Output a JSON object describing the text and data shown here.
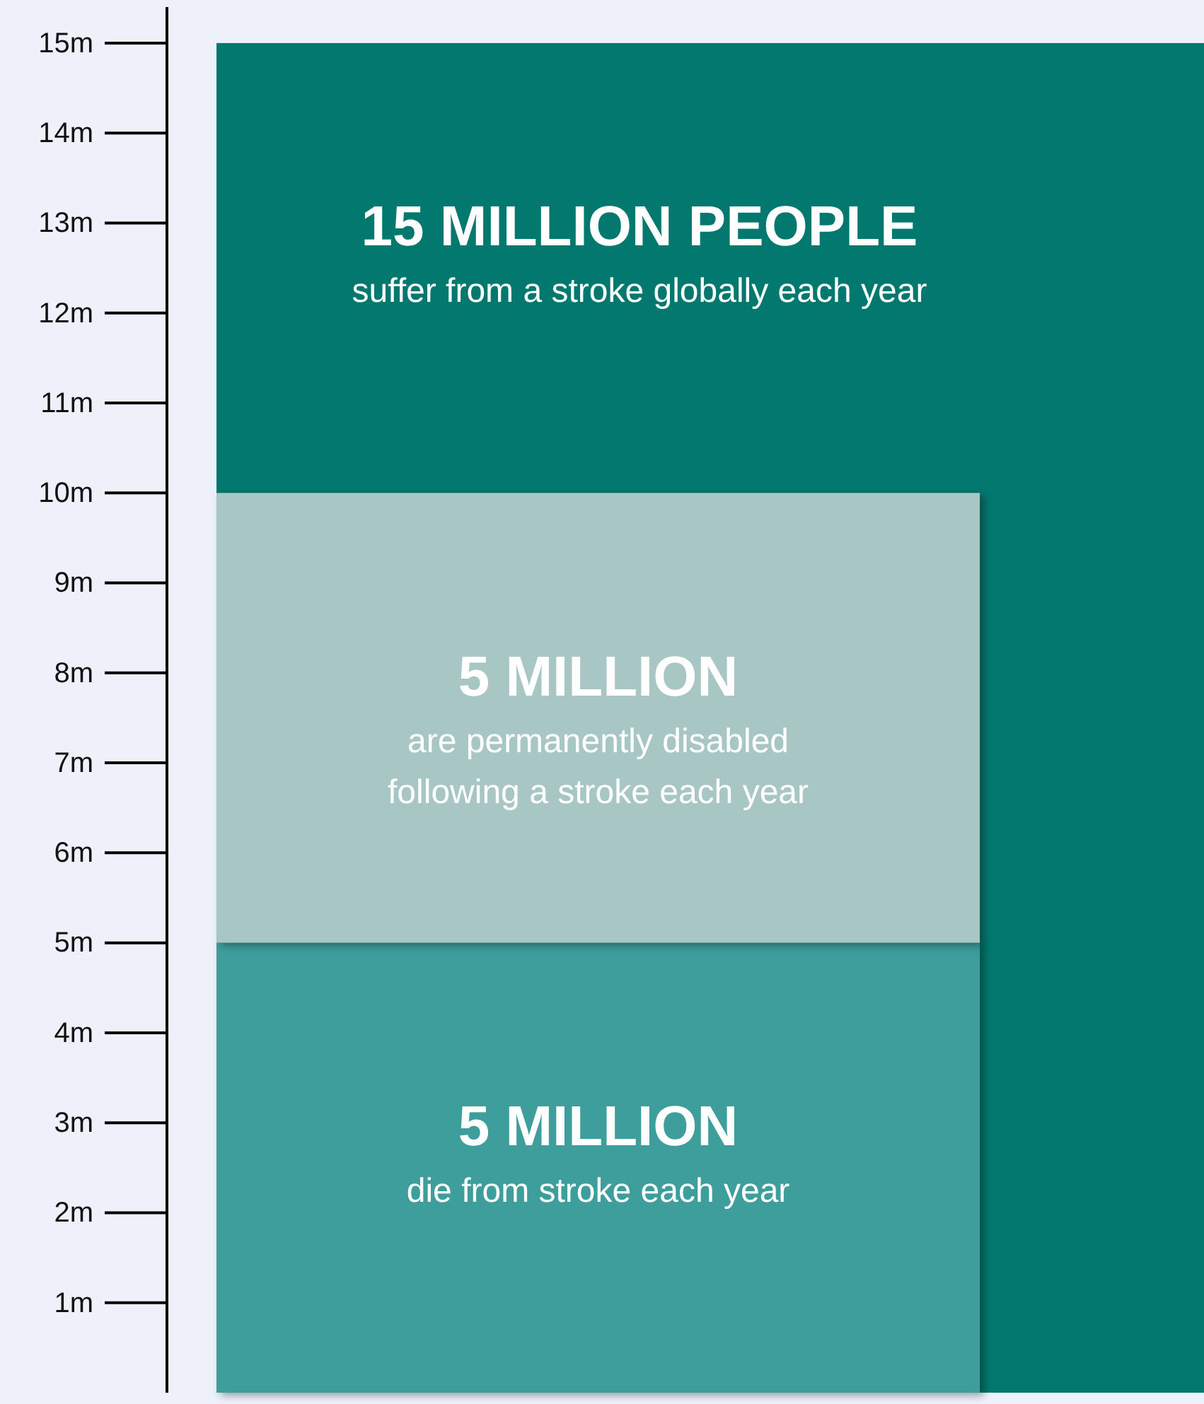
{
  "chart_data": {
    "type": "bar",
    "categories": [
      null
    ],
    "series": [
      {
        "name": "suffer from a stroke globally each year",
        "color": "#03786f",
        "values": [
          15
        ],
        "base": [
          0
        ],
        "value_labels": [
          "15 MILLION PEOPLE"
        ]
      },
      {
        "name": "die from stroke each year",
        "color": "#3d9e9c",
        "values": [
          5
        ],
        "base": [
          0
        ],
        "value_labels": [
          "5 MILLION"
        ]
      },
      {
        "name": "are permanently disabled following a stroke each year",
        "color": "#a7c6c4",
        "values": [
          5
        ],
        "base": [
          5
        ],
        "value_labels": [
          "5 MILLION"
        ]
      }
    ],
    "ylim": [
      0,
      15.4
    ],
    "yticks": [
      {
        "value": 1,
        "label": "1m"
      },
      {
        "value": 2,
        "label": "2m"
      },
      {
        "value": 3,
        "label": "3m"
      },
      {
        "value": 4,
        "label": "4m"
      },
      {
        "value": 5,
        "label": "5m"
      },
      {
        "value": 6,
        "label": "6m"
      },
      {
        "value": 7,
        "label": "7m"
      },
      {
        "value": 8,
        "label": "8m"
      },
      {
        "value": 9,
        "label": "9m"
      },
      {
        "value": 10,
        "label": "10m"
      },
      {
        "value": 11,
        "label": "11m"
      },
      {
        "value": 12,
        "label": "12m"
      },
      {
        "value": 13,
        "label": "13m"
      },
      {
        "value": 14,
        "label": "14m"
      },
      {
        "value": 15,
        "label": "15m"
      }
    ]
  }
}
